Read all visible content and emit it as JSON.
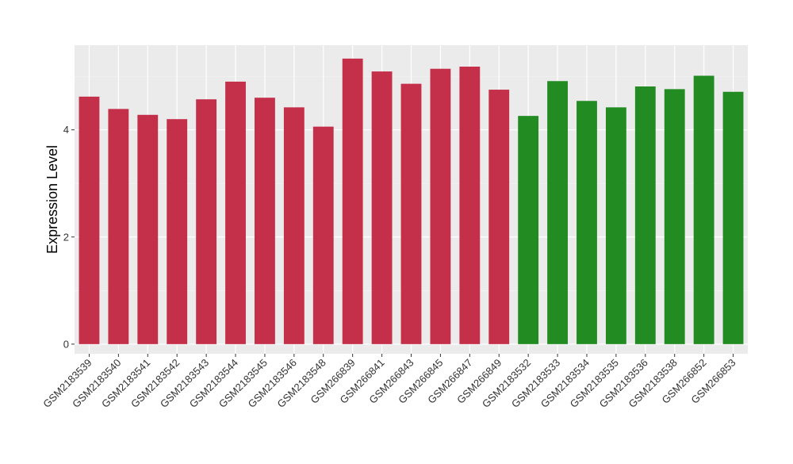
{
  "chart_data": {
    "type": "bar",
    "title": "",
    "xlabel": "",
    "ylabel": "Expression Level",
    "ylim": [
      -0.18,
      5.58
    ],
    "y_ticks": [
      0,
      2,
      4
    ],
    "grid": true,
    "legend": "none",
    "categories": [
      "GSM2183539",
      "GSM2183540",
      "GSM2183541",
      "GSM2183542",
      "GSM2183543",
      "GSM2183544",
      "GSM2183545",
      "GSM2183546",
      "GSM2183548",
      "GSM266839",
      "GSM266841",
      "GSM266843",
      "GSM266845",
      "GSM266847",
      "GSM266849",
      "GSM2183532",
      "GSM2183533",
      "GSM2183534",
      "GSM2183535",
      "GSM2183536",
      "GSM2183538",
      "GSM266852",
      "GSM266853"
    ],
    "values": [
      4.62,
      4.39,
      4.28,
      4.2,
      4.57,
      4.9,
      4.6,
      4.42,
      4.06,
      5.33,
      5.09,
      4.86,
      5.14,
      5.18,
      4.75,
      4.26,
      4.91,
      4.54,
      4.42,
      4.81,
      4.76,
      5.01,
      4.71
    ],
    "groups": [
      "red",
      "red",
      "red",
      "red",
      "red",
      "red",
      "red",
      "red",
      "red",
      "red",
      "red",
      "red",
      "red",
      "red",
      "red",
      "green",
      "green",
      "green",
      "green",
      "green",
      "green",
      "green",
      "green"
    ],
    "colors": {
      "red": "#c4304a",
      "green": "#228b22",
      "panel": "#ebebeb",
      "grid_major": "#ffffff",
      "grid_minor": "#f5f5f5",
      "tick": "#333333"
    }
  }
}
